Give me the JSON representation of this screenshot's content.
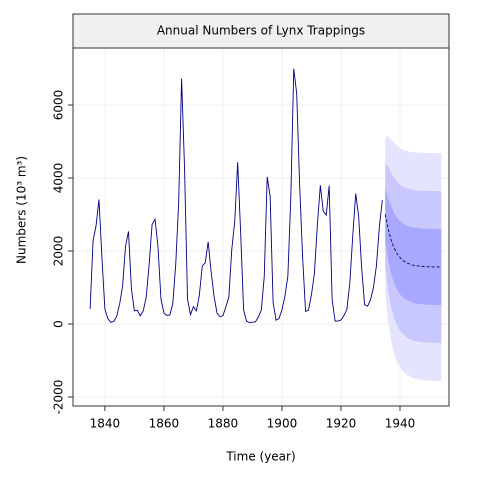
{
  "chart_data": {
    "type": "line",
    "title": "Annual Numbers of Lynx Trappings",
    "xlabel": "Time (year)",
    "ylabel": "Numbers (10³ m³)",
    "xlim": [
      1829.2,
      1956.6
    ],
    "ylim": [
      -2247,
      7562
    ],
    "xticks": [
      1840,
      1860,
      1880,
      1900,
      1920,
      1940
    ],
    "yticks": [
      -2000,
      0,
      2000,
      4000,
      6000
    ],
    "grid": true,
    "series": [
      {
        "color": "#000080",
        "dashed": false,
        "x": [
          1835,
          1836,
          1837,
          1838,
          1839,
          1840,
          1841,
          1842,
          1843,
          1844,
          1845,
          1846,
          1847,
          1848,
          1849,
          1850,
          1851,
          1852,
          1853,
          1854,
          1855,
          1856,
          1857,
          1858,
          1859,
          1860,
          1861,
          1862,
          1863,
          1864,
          1865,
          1866,
          1867,
          1868,
          1869,
          1870,
          1871,
          1872,
          1873,
          1874,
          1875,
          1876,
          1877,
          1878,
          1879,
          1880,
          1881,
          1882,
          1883,
          1884,
          1885,
          1886,
          1887,
          1888,
          1889,
          1890,
          1891,
          1892,
          1893,
          1894,
          1895,
          1896,
          1897,
          1898,
          1899,
          1900,
          1901,
          1902,
          1903,
          1904,
          1905,
          1906,
          1907,
          1908,
          1909,
          1910,
          1911,
          1912,
          1913,
          1914,
          1915,
          1916,
          1917,
          1918,
          1919,
          1920,
          1921,
          1922,
          1923,
          1924,
          1925,
          1926,
          1927,
          1928,
          1929,
          1930,
          1931,
          1932,
          1933,
          1934
        ],
        "values": [
          409,
          2285,
          2685,
          3409,
          1824,
          409,
          151,
          45,
          68,
          213,
          546,
          1033,
          2129,
          2536,
          957,
          361,
          377,
          225,
          360,
          731,
          1638,
          2725,
          2871,
          2119,
          684,
          299,
          236,
          245,
          552,
          1623,
          3311,
          6721,
          4254,
          687,
          255,
          473,
          358,
          784,
          1594,
          1676,
          2251,
          1426,
          756,
          299,
          201,
          229,
          469,
          736,
          2042,
          2811,
          4431,
          2511,
          389,
          73,
          39,
          49,
          59,
          188,
          377,
          1292,
          4031,
          3495,
          587,
          105,
          153,
          387,
          758,
          1307,
          3465,
          6991,
          6313,
          3794,
          1836,
          345,
          382,
          808,
          1388,
          2713,
          3800,
          3091,
          2985,
          3790,
          674,
          81,
          80,
          108,
          229,
          399,
          1132,
          2432,
          3574,
          2935,
          1537,
          529,
          485,
          662,
          1000,
          1590,
          2657,
          3396
        ]
      },
      {
        "color": "#000080",
        "dashed": true,
        "x": [
          1935,
          1936,
          1937,
          1938,
          1939,
          1940,
          1941,
          1942,
          1943,
          1944,
          1945,
          1946,
          1947,
          1948,
          1949,
          1950,
          1951,
          1952,
          1953,
          1954
        ],
        "values": [
          3000,
          2600,
          2300,
          2080,
          1930,
          1820,
          1740,
          1690,
          1650,
          1620,
          1600,
          1590,
          1580,
          1575,
          1570,
          1567,
          1565,
          1563,
          1562,
          1560
        ]
      }
    ],
    "bands": [
      {
        "color": "#e4e4ff",
        "x": [
          1935,
          1936,
          1937,
          1938,
          1939,
          1940,
          1941,
          1942,
          1943,
          1944,
          1945,
          1946,
          1947,
          1948,
          1949,
          1950,
          1951,
          1952,
          1953,
          1954
        ],
        "upper": [
          5100,
          5150,
          5060,
          4960,
          4885,
          4820,
          4770,
          4750,
          4725,
          4710,
          4699,
          4695,
          4691,
          4689,
          4687,
          4687,
          4685,
          4683,
          4682,
          4680
        ],
        "lower": [
          900,
          50,
          -460,
          -800,
          -1025,
          -1180,
          -1290,
          -1370,
          -1425,
          -1470,
          -1499,
          -1515,
          -1531,
          -1539,
          -1547,
          -1553,
          -1555,
          -1557,
          -1558,
          -1560
        ]
      },
      {
        "color": "#c8c8ff",
        "x": [
          1935,
          1936,
          1937,
          1938,
          1939,
          1940,
          1941,
          1942,
          1943,
          1944,
          1945,
          1946,
          1947,
          1948,
          1949,
          1950,
          1951,
          1952,
          1953,
          1954
        ],
        "upper": [
          4400,
          4300,
          4140,
          4000,
          3900,
          3820,
          3760,
          3730,
          3700,
          3680,
          3666,
          3660,
          3654,
          3651,
          3648,
          3647,
          3645,
          3643,
          3642,
          3640
        ],
        "lower": [
          1600,
          900,
          460,
          160,
          -40,
          -180,
          -280,
          -350,
          -400,
          -440,
          -466,
          -480,
          -494,
          -501,
          -508,
          -513,
          -515,
          -517,
          -518,
          -520
        ]
      },
      {
        "color": "#a8a8ff",
        "x": [
          1935,
          1936,
          1937,
          1938,
          1939,
          1940,
          1941,
          1942,
          1943,
          1944,
          1945,
          1946,
          1947,
          1948,
          1949,
          1950,
          1951,
          1952,
          1953,
          1954
        ],
        "upper": [
          3700,
          3450,
          3220,
          3040,
          2915,
          2820,
          2750,
          2710,
          2675,
          2650,
          2633,
          2625,
          2617,
          2613,
          2609,
          2607,
          2605,
          2603,
          2602,
          2600
        ],
        "lower": [
          2300,
          1750,
          1380,
          1120,
          945,
          820,
          730,
          670,
          625,
          590,
          567,
          555,
          543,
          537,
          531,
          527,
          525,
          523,
          522,
          520
        ]
      }
    ]
  }
}
